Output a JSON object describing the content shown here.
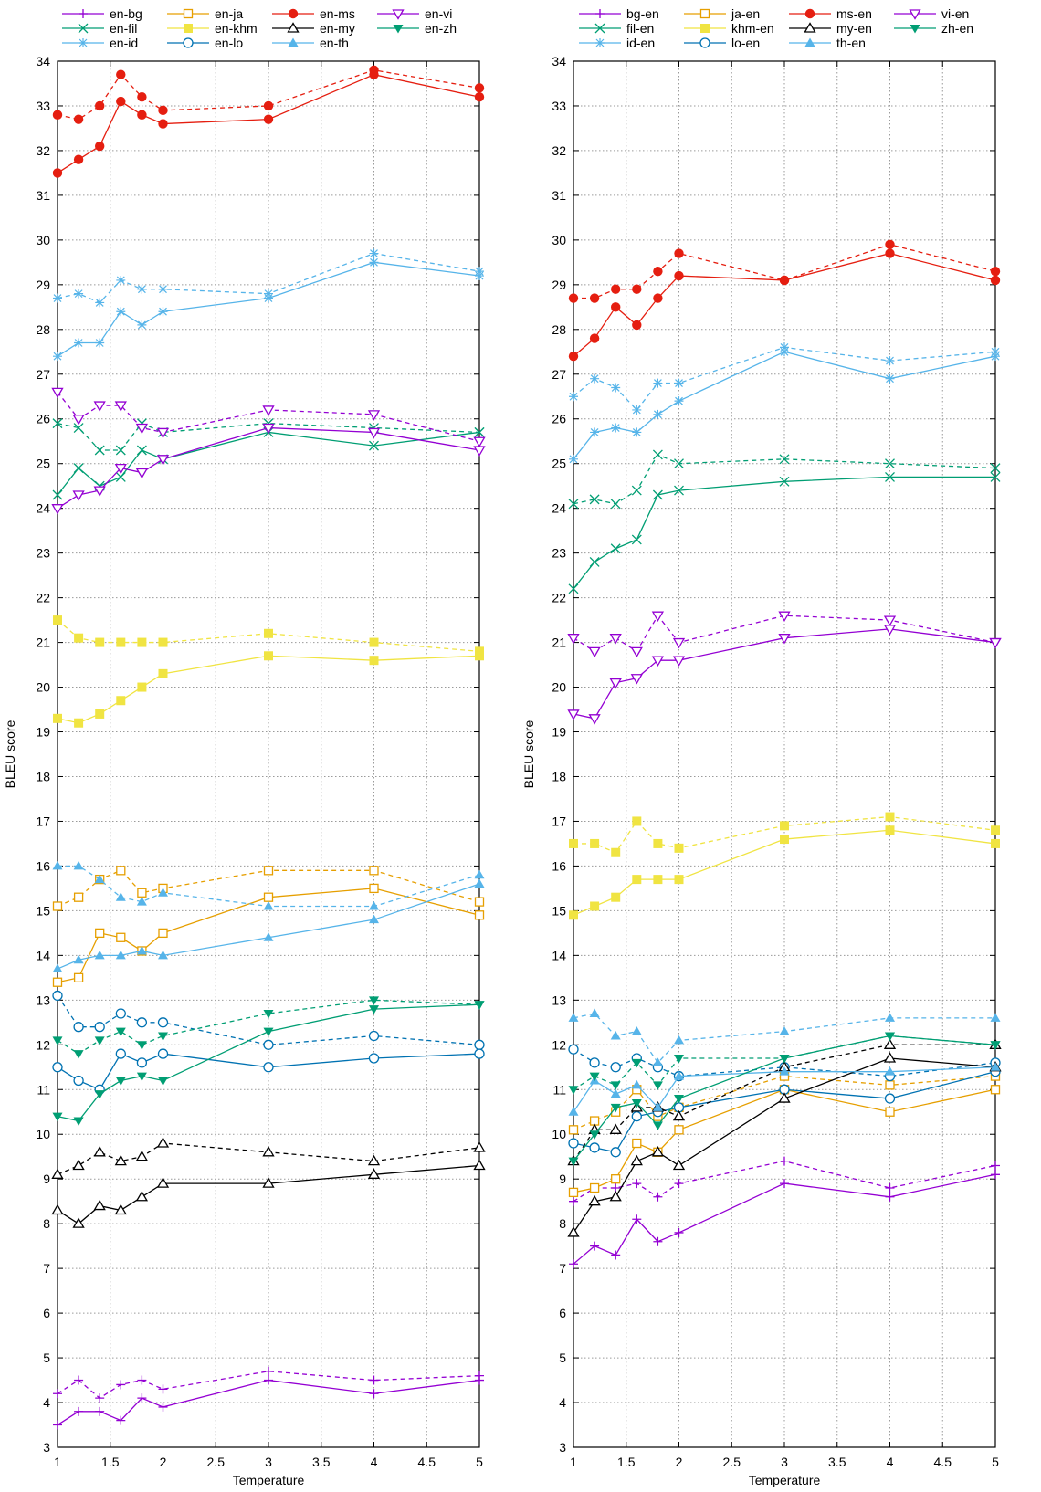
{
  "chart_data": [
    {
      "type": "line",
      "xlabel": "Temperature",
      "ylabel": "BLEU score",
      "xlim": [
        1,
        5
      ],
      "ylim": [
        3,
        34
      ],
      "x_ticks": [
        "1",
        "1.5",
        "2",
        "2.5",
        "3",
        "3.5",
        "4",
        "4.5",
        "5"
      ],
      "y_ticks": [
        "3",
        "4",
        "5",
        "6",
        "7",
        "8",
        "9",
        "10",
        "11",
        "12",
        "13",
        "14",
        "15",
        "16",
        "17",
        "18",
        "19",
        "20",
        "21",
        "22",
        "23",
        "24",
        "25",
        "26",
        "27",
        "28",
        "29",
        "30",
        "31",
        "32",
        "33",
        "34"
      ],
      "grid": true,
      "legend_position": "top",
      "line_styles": {
        "solid": "solid",
        "dashed": "dashed"
      },
      "x": [
        1,
        1.2,
        1.4,
        1.6,
        1.8,
        2,
        3,
        4,
        5
      ],
      "series": [
        {
          "name": "en-bg",
          "color": "#9400d3",
          "marker": "plus",
          "solid": [
            3.5,
            3.8,
            3.8,
            3.6,
            4.1,
            3.9,
            4.5,
            4.2,
            4.5
          ],
          "dashed": [
            4.2,
            4.5,
            4.1,
            4.4,
            4.5,
            4.3,
            4.7,
            4.5,
            4.6
          ]
        },
        {
          "name": "en-fil",
          "color": "#009e73",
          "marker": "cross",
          "solid": [
            24.3,
            24.9,
            24.5,
            24.7,
            25.3,
            25.1,
            25.7,
            25.4,
            25.7
          ],
          "dashed": [
            25.9,
            25.8,
            25.3,
            25.3,
            25.9,
            25.7,
            25.9,
            25.8,
            25.7
          ]
        },
        {
          "name": "en-id",
          "color": "#56b4e9",
          "marker": "star",
          "solid": [
            27.4,
            27.7,
            27.7,
            28.4,
            28.1,
            28.4,
            28.7,
            29.5,
            29.2
          ],
          "dashed": [
            28.7,
            28.8,
            28.6,
            29.1,
            28.9,
            28.9,
            28.8,
            29.7,
            29.3
          ]
        },
        {
          "name": "en-ja",
          "color": "#e69f00",
          "marker": "square-open",
          "solid": [
            13.4,
            13.5,
            14.5,
            14.4,
            14.1,
            14.5,
            15.3,
            15.5,
            14.9
          ],
          "dashed": [
            15.1,
            15.3,
            15.7,
            15.9,
            15.4,
            15.5,
            15.9,
            15.9,
            15.2
          ]
        },
        {
          "name": "en-khm",
          "color": "#f0e442",
          "marker": "square-filled",
          "solid": [
            19.3,
            19.2,
            19.4,
            19.7,
            20.0,
            20.3,
            20.7,
            20.6,
            20.7
          ],
          "dashed": [
            21.5,
            21.1,
            21.0,
            21.0,
            21.0,
            21.0,
            21.2,
            21.0,
            20.8
          ]
        },
        {
          "name": "en-lo",
          "color": "#0072b2",
          "marker": "circle-open",
          "solid": [
            11.5,
            11.2,
            11.0,
            11.8,
            11.6,
            11.8,
            11.5,
            11.7,
            11.8
          ],
          "dashed": [
            13.1,
            12.4,
            12.4,
            12.7,
            12.5,
            12.5,
            12.0,
            12.2,
            12.0
          ]
        },
        {
          "name": "en-ms",
          "color": "#e51e10",
          "marker": "circle-filled",
          "solid": [
            31.5,
            31.8,
            32.1,
            33.1,
            32.8,
            32.6,
            32.7,
            33.7,
            33.2
          ],
          "dashed": [
            32.8,
            32.7,
            33.0,
            33.7,
            33.2,
            32.9,
            33.0,
            33.8,
            33.4
          ]
        },
        {
          "name": "en-my",
          "color": "#000000",
          "marker": "triangle-open",
          "solid": [
            8.3,
            8.0,
            8.4,
            8.3,
            8.6,
            8.9,
            8.9,
            9.1,
            9.3
          ],
          "dashed": [
            9.1,
            9.3,
            9.6,
            9.4,
            9.5,
            9.8,
            9.6,
            9.4,
            9.7
          ]
        },
        {
          "name": "en-th",
          "color": "#56b4e9",
          "marker": "triangle-filled",
          "solid": [
            13.7,
            13.9,
            14.0,
            14.0,
            14.1,
            14.0,
            14.4,
            14.8,
            15.6
          ],
          "dashed": [
            16.0,
            16.0,
            15.7,
            15.3,
            15.2,
            15.4,
            15.1,
            15.1,
            15.8
          ]
        },
        {
          "name": "en-vi",
          "color": "#9400d3",
          "marker": "triangle-down-open",
          "solid": [
            24.0,
            24.3,
            24.4,
            24.9,
            24.8,
            25.1,
            25.8,
            25.7,
            25.3
          ],
          "dashed": [
            26.6,
            26.0,
            26.3,
            26.3,
            25.8,
            25.7,
            26.2,
            26.1,
            25.5
          ]
        },
        {
          "name": "en-zh",
          "color": "#009e73",
          "marker": "triangle-down-filled",
          "solid": [
            10.4,
            10.3,
            10.9,
            11.2,
            11.3,
            11.2,
            12.3,
            12.8,
            12.9
          ],
          "dashed": [
            12.1,
            11.8,
            12.1,
            12.3,
            12.0,
            12.2,
            12.7,
            13.0,
            12.9
          ]
        }
      ]
    },
    {
      "type": "line",
      "xlabel": "Temperature",
      "ylabel": "BLEU score",
      "xlim": [
        1,
        5
      ],
      "ylim": [
        3,
        34
      ],
      "x_ticks": [
        "1",
        "1.5",
        "2",
        "2.5",
        "3",
        "3.5",
        "4",
        "4.5",
        "5"
      ],
      "y_ticks": [
        "3",
        "4",
        "5",
        "6",
        "7",
        "8",
        "9",
        "10",
        "11",
        "12",
        "13",
        "14",
        "15",
        "16",
        "17",
        "18",
        "19",
        "20",
        "21",
        "22",
        "23",
        "24",
        "25",
        "26",
        "27",
        "28",
        "29",
        "30",
        "31",
        "32",
        "33",
        "34"
      ],
      "grid": true,
      "legend_position": "top",
      "x": [
        1,
        1.2,
        1.4,
        1.6,
        1.8,
        2,
        3,
        4,
        5
      ],
      "series": [
        {
          "name": "bg-en",
          "color": "#9400d3",
          "marker": "plus",
          "solid": [
            7.1,
            7.5,
            7.3,
            8.1,
            7.6,
            7.8,
            8.9,
            8.6,
            9.1
          ],
          "dashed": [
            8.5,
            8.8,
            8.8,
            8.9,
            8.6,
            8.9,
            9.4,
            8.8,
            9.3
          ]
        },
        {
          "name": "fil-en",
          "color": "#009e73",
          "marker": "cross",
          "solid": [
            22.2,
            22.8,
            23.1,
            23.3,
            24.3,
            24.4,
            24.6,
            24.7,
            24.7
          ],
          "dashed": [
            24.1,
            24.2,
            24.1,
            24.4,
            25.2,
            25.0,
            25.1,
            25.0,
            24.9
          ]
        },
        {
          "name": "id-en",
          "color": "#56b4e9",
          "marker": "star",
          "solid": [
            25.1,
            25.7,
            25.8,
            25.7,
            26.1,
            26.4,
            27.5,
            26.9,
            27.4
          ],
          "dashed": [
            26.5,
            26.9,
            26.7,
            26.2,
            26.8,
            26.8,
            27.6,
            27.3,
            27.5
          ]
        },
        {
          "name": "ja-en",
          "color": "#e69f00",
          "marker": "square-open",
          "solid": [
            8.7,
            8.8,
            9.0,
            9.8,
            9.6,
            10.1,
            11.0,
            10.5,
            11.0
          ],
          "dashed": [
            10.1,
            10.3,
            10.5,
            11.0,
            10.4,
            10.6,
            11.3,
            11.1,
            11.3
          ]
        },
        {
          "name": "khm-en",
          "color": "#f0e442",
          "marker": "square-filled",
          "solid": [
            14.9,
            15.1,
            15.3,
            15.7,
            15.7,
            15.7,
            16.6,
            16.8,
            16.5
          ],
          "dashed": [
            16.5,
            16.5,
            16.3,
            17.0,
            16.5,
            16.4,
            16.9,
            17.1,
            16.8
          ]
        },
        {
          "name": "lo-en",
          "color": "#0072b2",
          "marker": "circle-open",
          "solid": [
            9.8,
            9.7,
            9.6,
            10.4,
            10.5,
            10.6,
            11.0,
            10.8,
            11.4
          ],
          "dashed": [
            11.9,
            11.6,
            11.5,
            11.7,
            11.5,
            11.3,
            11.5,
            11.3,
            11.6
          ]
        },
        {
          "name": "ms-en",
          "color": "#e51e10",
          "marker": "circle-filled",
          "solid": [
            27.4,
            27.8,
            28.5,
            28.1,
            28.7,
            29.2,
            29.1,
            29.7,
            29.1
          ],
          "dashed": [
            28.7,
            28.7,
            28.9,
            28.9,
            29.3,
            29.7,
            29.1,
            29.9,
            29.3
          ]
        },
        {
          "name": "my-en",
          "color": "#000000",
          "marker": "triangle-open",
          "solid": [
            7.8,
            8.5,
            8.6,
            9.4,
            9.6,
            9.3,
            10.8,
            11.7,
            11.5
          ],
          "dashed": [
            9.4,
            10.1,
            10.1,
            10.6,
            10.6,
            10.4,
            11.5,
            12.0,
            12.0
          ]
        },
        {
          "name": "th-en",
          "color": "#56b4e9",
          "marker": "triangle-filled",
          "solid": [
            10.5,
            11.2,
            10.9,
            11.1,
            10.6,
            11.3,
            11.4,
            11.4,
            11.5
          ],
          "dashed": [
            12.6,
            12.7,
            12.2,
            12.3,
            11.6,
            12.1,
            12.3,
            12.6,
            12.6
          ]
        },
        {
          "name": "vi-en",
          "color": "#9400d3",
          "marker": "triangle-down-open",
          "solid": [
            19.4,
            19.3,
            20.1,
            20.2,
            20.6,
            20.6,
            21.1,
            21.3,
            21.0
          ],
          "dashed": [
            21.1,
            20.8,
            21.1,
            20.8,
            21.6,
            21.0,
            21.6,
            21.5,
            21.0
          ]
        },
        {
          "name": "zh-en",
          "color": "#009e73",
          "marker": "triangle-down-filled",
          "solid": [
            9.4,
            10.0,
            10.6,
            10.7,
            10.2,
            10.8,
            11.7,
            12.2,
            12.0
          ],
          "dashed": [
            11.0,
            11.3,
            11.1,
            11.6,
            11.1,
            11.7,
            11.7,
            12.2,
            12.0
          ]
        }
      ]
    }
  ]
}
